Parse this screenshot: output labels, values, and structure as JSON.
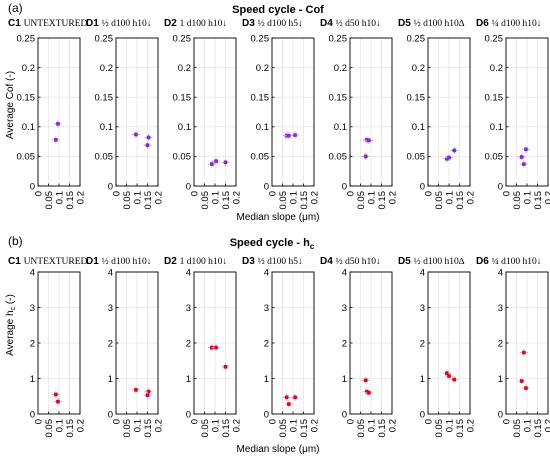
{
  "figure": {
    "panel_a": {
      "label": "(a)",
      "title": "Speed cycle - Cof",
      "ylabel": "Average Cof (-)",
      "xlabel": "Median slope (μm)"
    },
    "panel_b": {
      "label": "(b)",
      "title_main": "Speed cycle - h",
      "title_sub": "c",
      "ylabel_main": "Average h",
      "ylabel_sub": "c",
      "ylabel_tail": " (-)",
      "xlabel": "Median slope (μm)"
    }
  },
  "colors": {
    "marker_a": "#7b2fbf",
    "marker_b": "#c0102e",
    "errorbar_a": "#c9a3e6",
    "errorbar_b": "#f0a0a8",
    "axes": "#000000",
    "grid": "#e6e6e6"
  },
  "chart_data": [
    {
      "type": "scatter",
      "title": "Speed cycle - Cof",
      "ylabel": "Average Cof (-)",
      "xlabel": "Median slope (μm)",
      "ylim": [
        0,
        0.25
      ],
      "yticks": [
        "0",
        "0.05",
        "0.1",
        "0.15",
        "0.2",
        "0.25"
      ],
      "xlim": [
        0,
        0.2
      ],
      "xticks": [
        "0",
        "0.05",
        "0.1",
        "0.15",
        "0.2"
      ],
      "grid": true,
      "subplots": [
        {
          "code": "C1",
          "label": "UNTEXTURED",
          "points": [
            {
              "x": 0.085,
              "y": 0.078
            },
            {
              "x": 0.095,
              "y": 0.105
            }
          ]
        },
        {
          "code": "D1",
          "label": "½ d100 h10↓",
          "points": [
            {
              "x": 0.095,
              "y": 0.087
            },
            {
              "x": 0.155,
              "y": 0.082
            },
            {
              "x": 0.15,
              "y": 0.069
            }
          ]
        },
        {
          "code": "D2",
          "label": "1 d100 h10↓",
          "points": [
            {
              "x": 0.085,
              "y": 0.037
            },
            {
              "x": 0.105,
              "y": 0.042
            },
            {
              "x": 0.15,
              "y": 0.04
            }
          ]
        },
        {
          "code": "D3",
          "label": "½ d100 h5↓",
          "points": [
            {
              "x": 0.07,
              "y": 0.085
            },
            {
              "x": 0.08,
              "y": 0.085
            },
            {
              "x": 0.11,
              "y": 0.086
            }
          ]
        },
        {
          "code": "D4",
          "label": "½ d50 h10↓",
          "points": [
            {
              "x": 0.075,
              "y": 0.05
            },
            {
              "x": 0.08,
              "y": 0.078
            },
            {
              "x": 0.09,
              "y": 0.077
            }
          ]
        },
        {
          "code": "D5",
          "label": "½ d100 h10∆",
          "points": [
            {
              "x": 0.09,
              "y": 0.046
            },
            {
              "x": 0.1,
              "y": 0.048
            },
            {
              "x": 0.125,
              "y": 0.06
            }
          ]
        },
        {
          "code": "D6",
          "label": "¼ d100 h10↓",
          "points": [
            {
              "x": 0.075,
              "y": 0.049
            },
            {
              "x": 0.085,
              "y": 0.037
            },
            {
              "x": 0.095,
              "y": 0.062
            }
          ]
        }
      ]
    },
    {
      "type": "scatter",
      "title": "Speed cycle - hc",
      "ylabel": "Average hc (-)",
      "xlabel": "Median slope (μm)",
      "ylim": [
        0,
        4
      ],
      "yticks": [
        "0",
        "1",
        "2",
        "3",
        "4"
      ],
      "xlim": [
        0,
        0.2
      ],
      "xticks": [
        "0",
        "0.05",
        "0.1",
        "0.15",
        "0.2"
      ],
      "grid": true,
      "subplots": [
        {
          "code": "C1",
          "label": "UNTEXTURED",
          "points": [
            {
              "x": 0.085,
              "y": 0.55
            },
            {
              "x": 0.095,
              "y": 0.35
            }
          ]
        },
        {
          "code": "D1",
          "label": "½ d100 h10↓",
          "points": [
            {
              "x": 0.095,
              "y": 0.68
            },
            {
              "x": 0.155,
              "y": 0.63
            },
            {
              "x": 0.15,
              "y": 0.53
            }
          ]
        },
        {
          "code": "D2",
          "label": "1 d100 h10↓",
          "points": [
            {
              "x": 0.085,
              "y": 1.87
            },
            {
              "x": 0.105,
              "y": 1.87
            },
            {
              "x": 0.15,
              "y": 1.33
            }
          ]
        },
        {
          "code": "D3",
          "label": "½ d100 h5↓",
          "points": [
            {
              "x": 0.07,
              "y": 0.47
            },
            {
              "x": 0.08,
              "y": 0.28
            },
            {
              "x": 0.11,
              "y": 0.47
            }
          ]
        },
        {
          "code": "D4",
          "label": "½ d50 h10↓",
          "points": [
            {
              "x": 0.075,
              "y": 0.95
            },
            {
              "x": 0.08,
              "y": 0.63
            },
            {
              "x": 0.09,
              "y": 0.6
            }
          ]
        },
        {
          "code": "D5",
          "label": "½ d100 h10∆",
          "points": [
            {
              "x": 0.09,
              "y": 1.15
            },
            {
              "x": 0.1,
              "y": 1.07
            },
            {
              "x": 0.125,
              "y": 0.97
            }
          ]
        },
        {
          "code": "D6",
          "label": "¼ d100 h10↓",
          "points": [
            {
              "x": 0.075,
              "y": 0.93
            },
            {
              "x": 0.085,
              "y": 1.73
            },
            {
              "x": 0.095,
              "y": 0.73
            }
          ]
        }
      ]
    }
  ]
}
